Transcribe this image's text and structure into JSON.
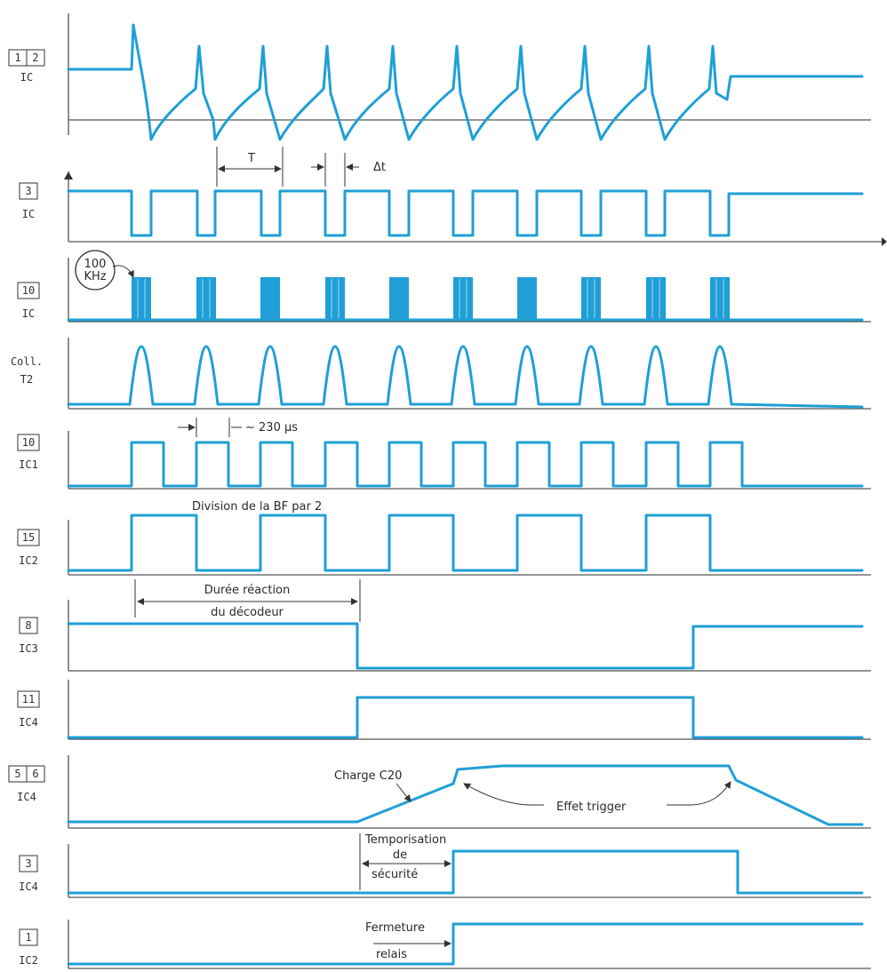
{
  "rows": [
    {
      "id": "ic-1-2",
      "pins": [
        "1",
        "2"
      ],
      "chip": "IC"
    },
    {
      "id": "ic-3",
      "pins": [
        "3"
      ],
      "chip": "IC"
    },
    {
      "id": "ic-10",
      "pins": [
        "10"
      ],
      "chip": "IC"
    },
    {
      "id": "t2",
      "name_line1": "Coll.",
      "name_line2": "T2"
    },
    {
      "id": "ic1-10",
      "pins": [
        "10"
      ],
      "chip": "IC1"
    },
    {
      "id": "ic2-15",
      "pins": [
        "15"
      ],
      "chip": "IC2"
    },
    {
      "id": "ic3-8",
      "pins": [
        "8"
      ],
      "chip": "IC3"
    },
    {
      "id": "ic4-11",
      "pins": [
        "11"
      ],
      "chip": "IC4"
    },
    {
      "id": "ic4-5-6",
      "pins": [
        "5",
        "6"
      ],
      "chip": "IC4"
    },
    {
      "id": "ic4-3",
      "pins": [
        "3"
      ],
      "chip": "IC4"
    },
    {
      "id": "ic2-1",
      "pins": [
        "1"
      ],
      "chip": "IC2"
    }
  ],
  "annotations": {
    "period": "T",
    "delta_t": "Δt",
    "freq_line1": "100",
    "freq_line2": "KHz",
    "pulse_width": "~ 230 µs",
    "division": "Division de la BF par 2",
    "decoder_line1": "Durée réaction",
    "decoder_line2": "du décodeur",
    "charge": "Charge C20",
    "trigger": "Effet trigger",
    "temporisation_line1": "Temporisation",
    "temporisation_line2": "de",
    "temporisation_line3": "sécurité",
    "fermeture_line1": "Fermeture",
    "fermeture_line2": "relais"
  },
  "colors": {
    "trace": "#1f9fd6",
    "axis": "#555555",
    "text": "#333333"
  }
}
